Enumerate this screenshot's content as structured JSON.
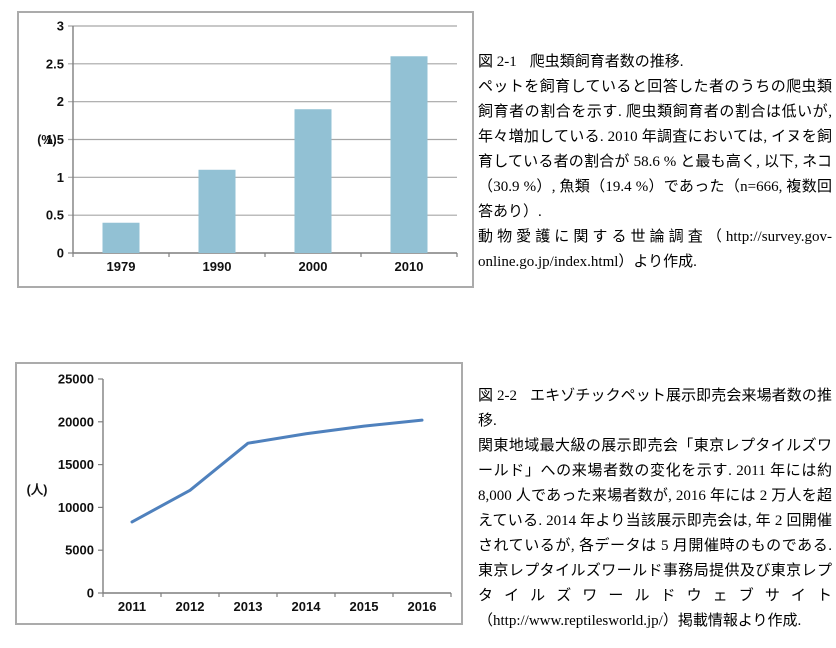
{
  "figures": [
    {
      "id": "figure-2-1",
      "caption": {
        "label": "図 2-1",
        "title": "爬虫類飼育者数の推移.",
        "body": "ペットを飼育していると回答した者のうちの爬虫類飼育者の割合を示す. 爬虫類飼育者の割合は低いが, 年々増加している. 2010 年調査においては, イヌを飼育している者の割合が 58.6 % と最も高く, 以下, ネコ（30.9 %）, 魚類（19.4 %）であった（n=666, 複数回答あり）.",
        "source": "動物愛護に関する世論調査（http://survey.gov-online.go.jp/index.html）より作成."
      }
    },
    {
      "id": "figure-2-2",
      "caption": {
        "label": "図 2-2",
        "title": "エキゾチックペット展示即売会来場者数の推移.",
        "body": "関東地域最大級の展示即売会「東京レプタイルズワールド」への来場者数の変化を示す. 2011 年には約 8,000 人であった来場者数が, 2016 年には 2 万人を超えている. 2014 年より当該展示即売会は, 年 2 回開催されているが, 各データは 5 月開催時のものである. 東京レプタイルズワールド事務局提供及び東京レプタイルズワールドウェブサイト（http://www.reptilesworld.jp/）掲載情報より作成.",
        "source": ""
      }
    }
  ],
  "chart_data": [
    {
      "type": "bar",
      "categories": [
        "1979",
        "1990",
        "2000",
        "2010"
      ],
      "values": [
        0.4,
        1.1,
        1.9,
        2.6
      ],
      "title": "",
      "xlabel": "",
      "ylabel": "(%)",
      "ylim": [
        0,
        3
      ],
      "ytick_step": 0.5,
      "yticks": [
        "0",
        "0.5",
        "1",
        "1.5",
        "2",
        "2.5",
        "3"
      ],
      "grid": true,
      "legend": "none",
      "bar_color": "#92C1D4",
      "axis_color": "#7f7f7f",
      "grid_color": "#a6a6a6"
    },
    {
      "type": "line",
      "categories": [
        "2011",
        "2012",
        "2013",
        "2014",
        "2015",
        "2016"
      ],
      "values": [
        8300,
        12000,
        17500,
        18600,
        19500,
        20200
      ],
      "title": "",
      "xlabel": "",
      "ylabel": "(人)",
      "ylim": [
        0,
        25000
      ],
      "ytick_step": 5000,
      "yticks": [
        "0",
        "5000",
        "10000",
        "15000",
        "20000",
        "25000"
      ],
      "grid": false,
      "legend": "none",
      "line_color": "#4F81BD",
      "axis_color": "#7f7f7f"
    }
  ]
}
